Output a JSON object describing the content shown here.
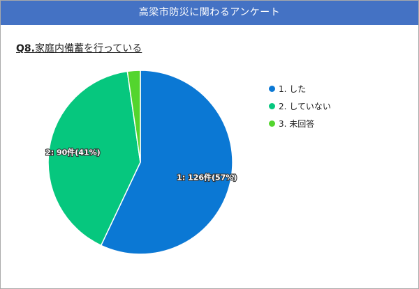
{
  "header": {
    "title": "高梁市防災に関わるアンケート"
  },
  "question": {
    "number": "Q8.",
    "text": "家庭内備蓄を行っている"
  },
  "chart_data": {
    "type": "pie",
    "categories": [
      "1. した",
      "2. していない",
      "3. 未回答"
    ],
    "values": [
      126,
      90,
      5
    ],
    "colors": [
      "#0b78d4",
      "#06c77e",
      "#53d52e"
    ],
    "data_labels": [
      "1: 126件(57%)",
      "2: 90件(41%)",
      ""
    ],
    "legend_position": "right"
  }
}
